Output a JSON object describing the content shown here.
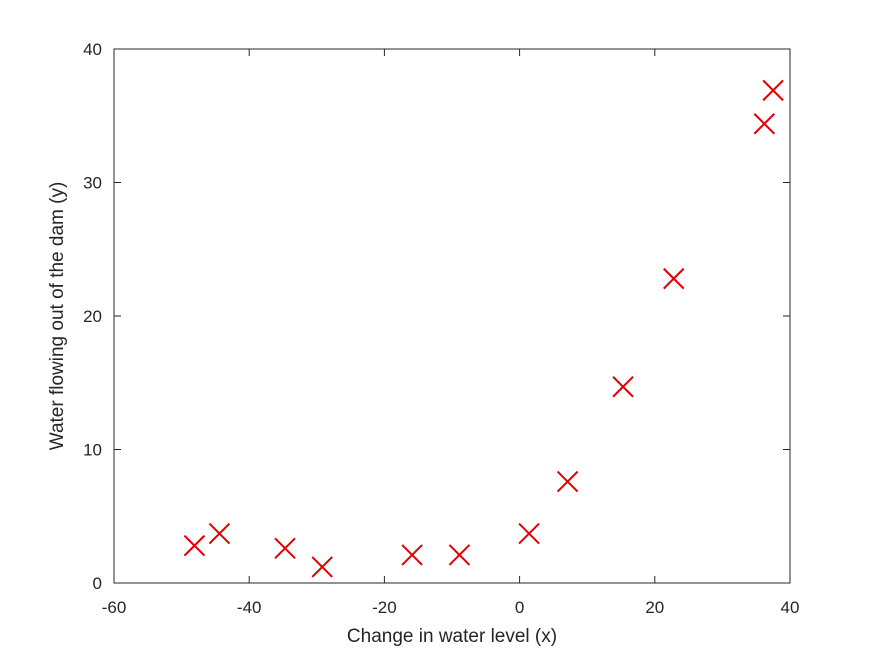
{
  "chart_data": {
    "type": "scatter",
    "title": "",
    "xlabel": "Change in water level (x)",
    "ylabel": "Water flowing out of the dam (y)",
    "xlim": [
      -60,
      40
    ],
    "ylim": [
      0,
      40
    ],
    "xticks": [
      -60,
      -40,
      -20,
      0,
      20,
      40
    ],
    "yticks": [
      0,
      10,
      20,
      30,
      40
    ],
    "grid": false,
    "marker": "x",
    "marker_color": "#e00000",
    "series": [
      {
        "x": [
          -48.1,
          -44.4,
          -34.7,
          -29.2,
          -15.9,
          -8.9,
          1.4,
          7.1,
          15.3,
          22.8,
          36.2,
          37.5
        ],
        "y": [
          2.8,
          3.7,
          2.6,
          1.2,
          2.1,
          2.1,
          3.7,
          7.6,
          14.7,
          22.8,
          34.4,
          36.9
        ]
      }
    ]
  }
}
